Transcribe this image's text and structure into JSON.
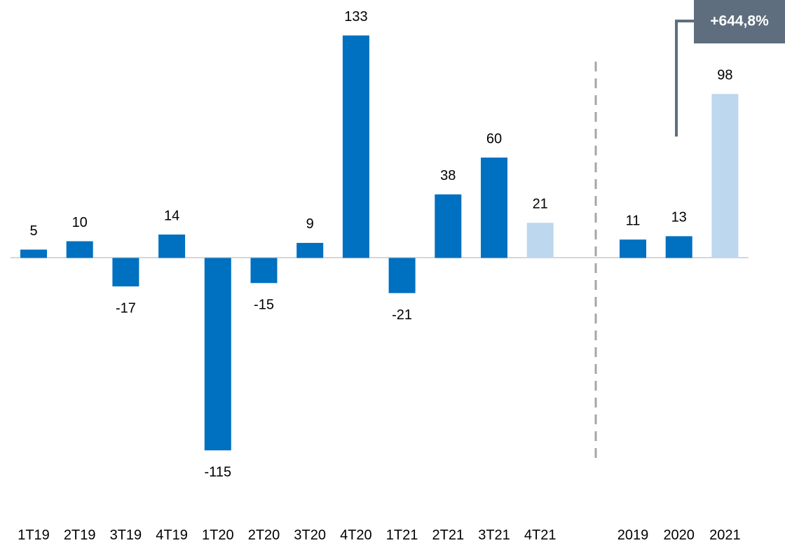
{
  "chart_data": [
    {
      "type": "bar",
      "categories": [
        "1T19",
        "2T19",
        "3T19",
        "4T19",
        "1T20",
        "2T20",
        "3T20",
        "4T20",
        "1T21",
        "2T21",
        "3T21",
        "4T21"
      ],
      "values": [
        5,
        10,
        -17,
        14,
        -115,
        -15,
        9,
        133,
        -21,
        38,
        60,
        21
      ],
      "colors": [
        "#0070c0",
        "#0070c0",
        "#0070c0",
        "#0070c0",
        "#0070c0",
        "#0070c0",
        "#0070c0",
        "#0070c0",
        "#0070c0",
        "#0070c0",
        "#0070c0",
        "#bdd7ee"
      ],
      "ylim": [
        -140,
        150
      ]
    },
    {
      "type": "bar",
      "categories": [
        "2019",
        "2020",
        "2021"
      ],
      "values": [
        11,
        13,
        98
      ],
      "colors": [
        "#0070c0",
        "#0070c0",
        "#bdd7ee"
      ],
      "ylim": [
        -140,
        150
      ],
      "annotation": "+644,8%"
    }
  ]
}
